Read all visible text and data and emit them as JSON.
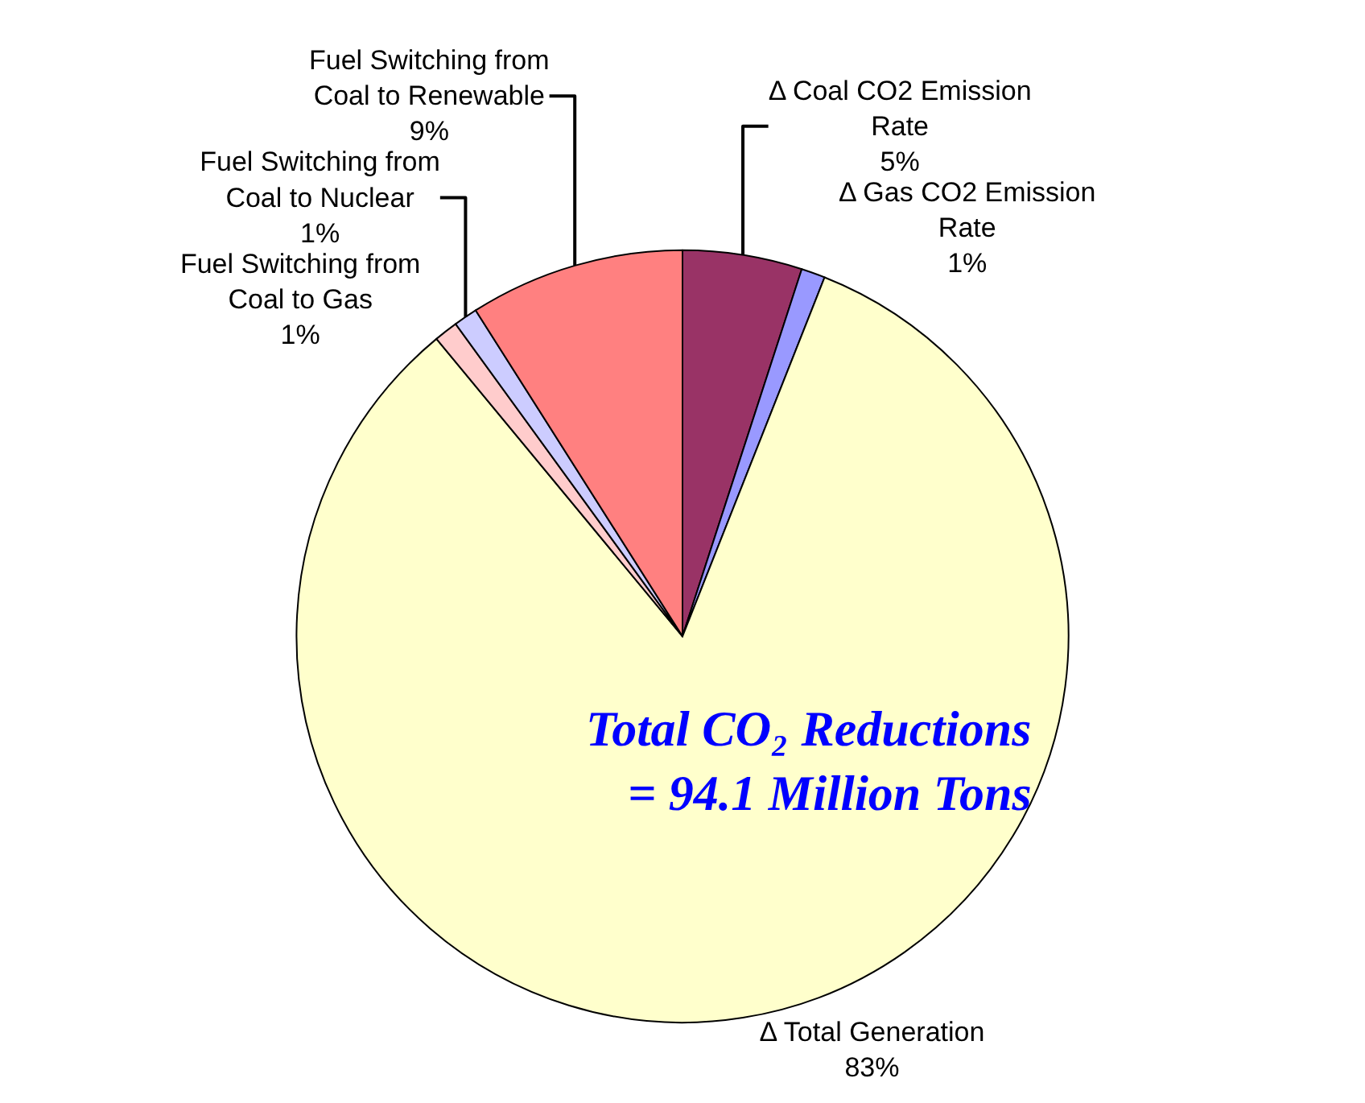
{
  "chart_data": {
    "type": "pie",
    "categories": [
      "Δ Coal CO2 Emission Rate",
      "Δ Gas CO2 Emission Rate",
      "Δ Total Generation",
      "Fuel Switching from Coal to Gas",
      "Fuel Switching from Coal to Nuclear",
      "Fuel Switching from Coal to Renewable"
    ],
    "values": [
      5,
      1,
      83,
      1,
      1,
      9
    ],
    "colors": [
      "#993366",
      "#9999ff",
      "#ffffcc",
      "#ffcccc",
      "#ccccff",
      "#ff8080"
    ],
    "value_labels": [
      "5%",
      "1%",
      "83%",
      "1%",
      "1%",
      "9%"
    ],
    "legend": false,
    "annotations": [
      "Total CO₂ Reductions",
      "= 94.1 Million Tons"
    ]
  }
}
